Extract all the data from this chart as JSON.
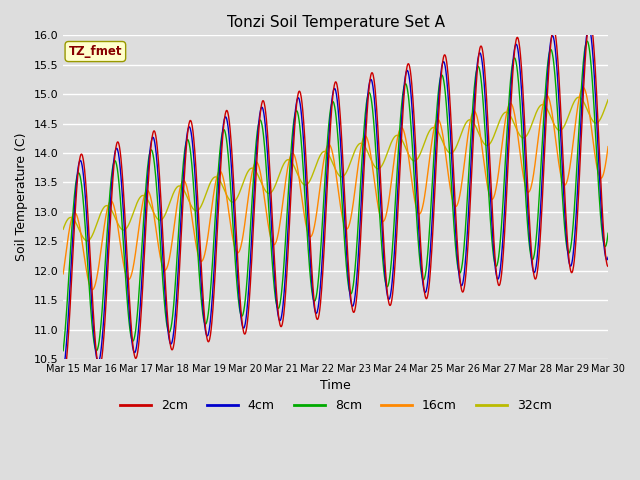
{
  "title": "Tonzi Soil Temperature Set A",
  "xlabel": "Time",
  "ylabel": "Soil Temperature (C)",
  "annotation": "TZ_fmet",
  "ylim": [
    10.5,
    16.0
  ],
  "yticks": [
    10.5,
    11.0,
    11.5,
    12.0,
    12.5,
    13.0,
    13.5,
    14.0,
    14.5,
    15.0,
    15.5,
    16.0
  ],
  "xtick_labels": [
    "Mar 15",
    "Mar 16",
    "Mar 17",
    "Mar 18",
    "Mar 19",
    "Mar 20",
    "Mar 21",
    "Mar 22",
    "Mar 23",
    "Mar 24",
    "Mar 25",
    "Mar 26",
    "Mar 27",
    "Mar 28",
    "Mar 29",
    "Mar 30"
  ],
  "series_colors": {
    "2cm": "#cc0000",
    "4cm": "#0000cc",
    "8cm": "#00aa00",
    "16cm": "#ff8800",
    "32cm": "#bbbb00"
  },
  "series_labels": [
    "2cm",
    "4cm",
    "8cm",
    "16cm",
    "32cm"
  ],
  "background_color": "#dddddd",
  "plot_bg_color": "#dddddd",
  "grid_color": "#ffffff",
  "figwidth": 6.4,
  "figheight": 4.8,
  "dpi": 100
}
